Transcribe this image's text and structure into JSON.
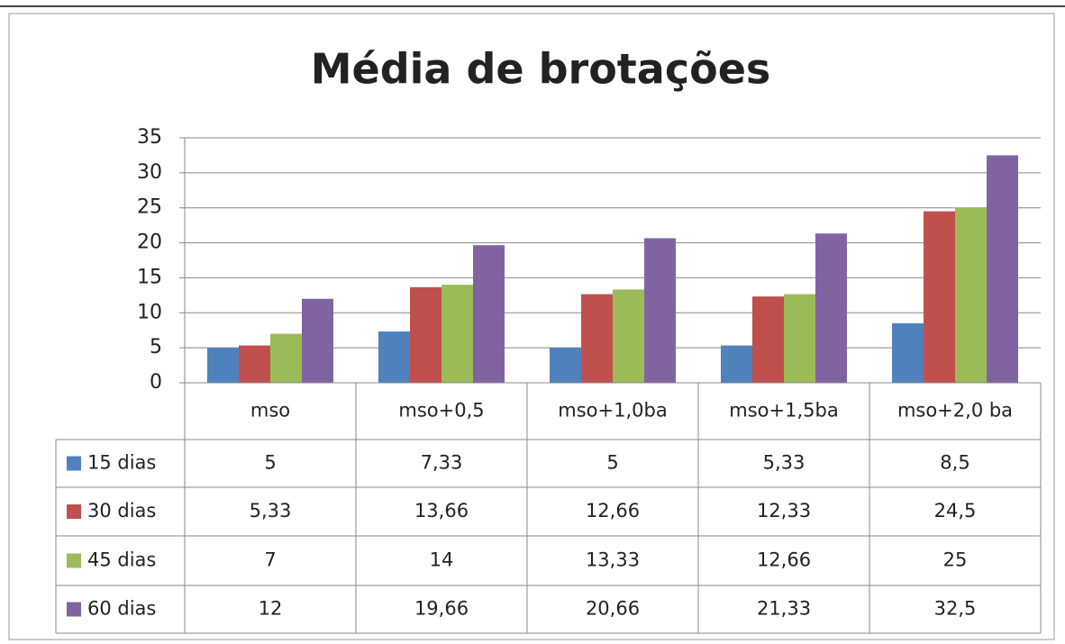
{
  "chart_data": {
    "type": "bar",
    "title": "Média de brotações",
    "categories": [
      "mso",
      "mso+0,5",
      "mso+1,0ba",
      "mso+1,5ba",
      "mso+2,0 ba"
    ],
    "series": [
      {
        "name": "15 dias",
        "color": "#4f81bd",
        "values": [
          5,
          7.33,
          5,
          5.33,
          8.5
        ],
        "value_labels": [
          "5",
          "7,33",
          "5",
          "5,33",
          "8,5"
        ]
      },
      {
        "name": "30 dias",
        "color": "#c0504d",
        "values": [
          5.33,
          13.66,
          12.66,
          12.33,
          24.5
        ],
        "value_labels": [
          "5,33",
          "13,66",
          "12,66",
          "12,33",
          "24,5"
        ]
      },
      {
        "name": "45 dias",
        "color": "#9bbb59",
        "values": [
          7,
          14,
          13.33,
          12.66,
          25
        ],
        "value_labels": [
          "7",
          "14",
          "13,33",
          "12,66",
          "25"
        ]
      },
      {
        "name": "60 dias",
        "color": "#8064a2",
        "values": [
          12,
          19.66,
          20.66,
          21.33,
          32.5
        ],
        "value_labels": [
          "12",
          "19,66",
          "20,66",
          "21,33",
          "32,5"
        ]
      }
    ],
    "ylim": [
      0,
      35
    ],
    "yticks": [
      0,
      5,
      10,
      15,
      20,
      25,
      30,
      35
    ],
    "grid": true
  }
}
